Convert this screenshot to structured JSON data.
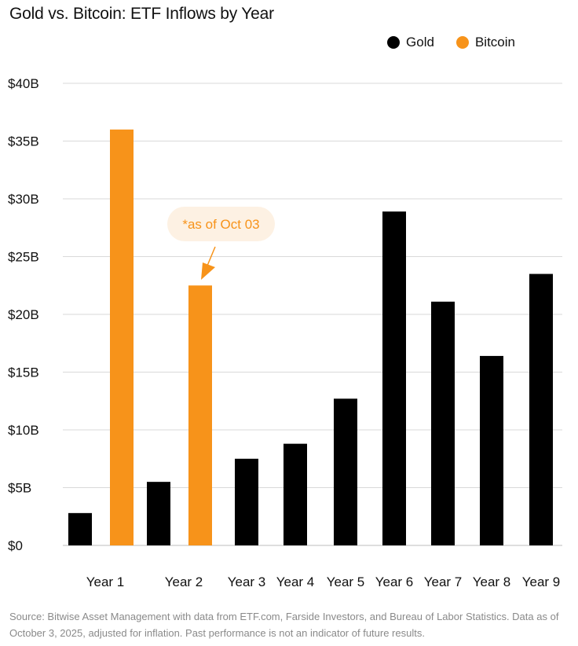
{
  "title": "Gold vs. Bitcoin: ETF Inflows by Year",
  "legend": [
    {
      "label": "Gold",
      "color": "#000000"
    },
    {
      "label": "Bitcoin",
      "color": "#f7931a"
    }
  ],
  "annotation": {
    "text": "*as of Oct 03",
    "color": "#f7931a",
    "bg": "#fdf1e3",
    "target": "Year 2"
  },
  "source": "Source: Bitwise Asset Management with data from ETF.com, Farside Investors, and Bureau of Labor Statistics. Data as of October 3, 2025, adjusted for inflation. Past performance is not an indicator of future results.",
  "chart_data": {
    "type": "bar",
    "title": "Gold vs. Bitcoin: ETF Inflows by Year",
    "categories": [
      "Year 1",
      "Year 2",
      "Year 3",
      "Year 4",
      "Year 5",
      "Year 6",
      "Year 7",
      "Year 8",
      "Year 9"
    ],
    "series": [
      {
        "name": "Gold",
        "color": "#000000",
        "values": [
          2.8,
          5.5,
          7.5,
          8.8,
          12.7,
          28.9,
          21.1,
          16.4,
          23.5
        ]
      },
      {
        "name": "Bitcoin",
        "color": "#f7931a",
        "values": [
          36.0,
          22.5,
          null,
          null,
          null,
          null,
          null,
          null,
          null
        ]
      }
    ],
    "yticks": [
      "$0",
      "$5B",
      "$10B",
      "$15B",
      "$20B",
      "$25B",
      "$30B",
      "$35B",
      "$40B"
    ],
    "ylim": [
      0,
      40
    ],
    "unit": "billions USD",
    "grid": true,
    "legend_position": "top-right"
  }
}
